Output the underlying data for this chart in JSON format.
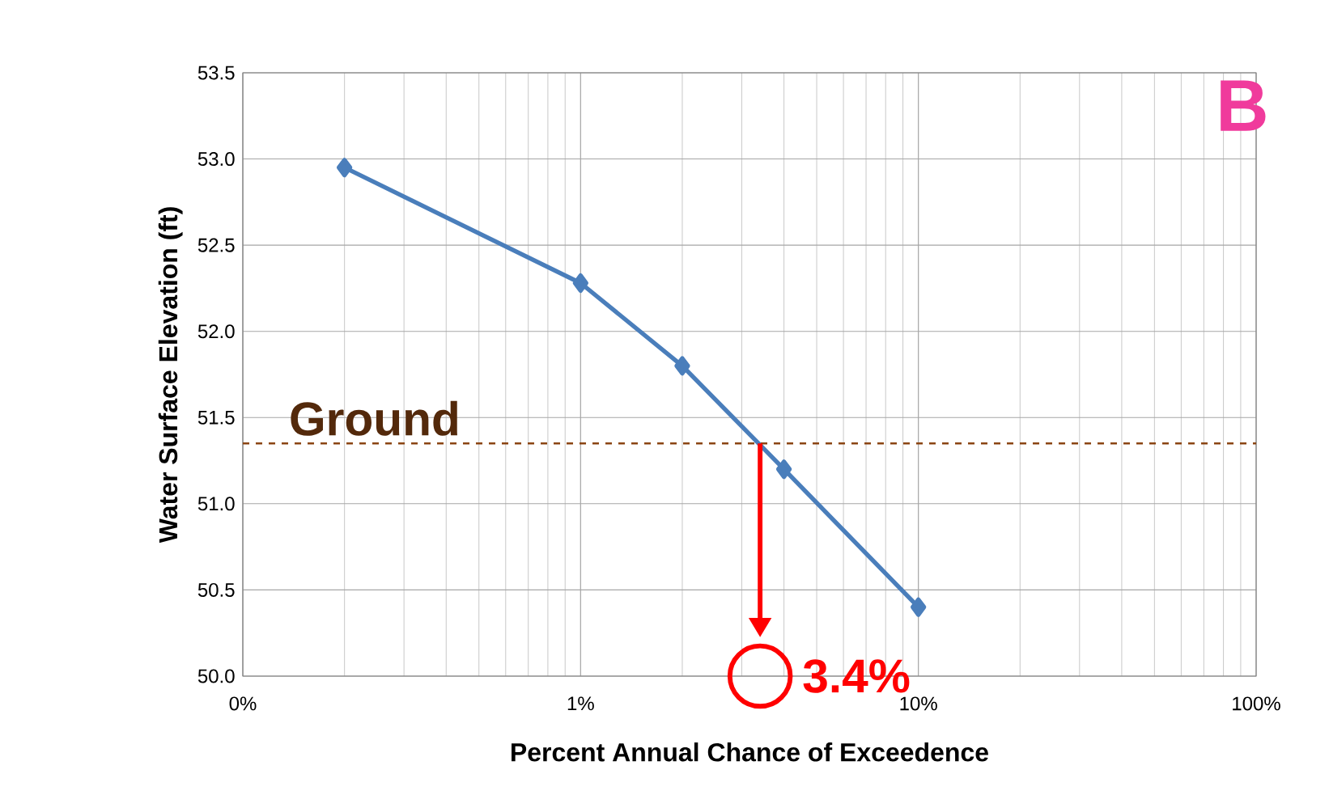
{
  "chart_data": {
    "type": "line",
    "xlabel": "Percent Annual Chance of Exceedence",
    "ylabel": "Water Surface Elevation (ft)",
    "x": [
      0.2,
      1,
      2,
      4,
      10
    ],
    "series": [
      {
        "color": "#4a7ebb",
        "values": [
          52.95,
          52.28,
          51.8,
          51.2,
          50.4
        ]
      }
    ],
    "log": "x",
    "xlim": [
      0.1,
      100
    ],
    "ylim": [
      50,
      53.5
    ],
    "xticks": [
      {
        "value": 0.1,
        "label": "0%"
      },
      {
        "value": 1,
        "label": "1%"
      },
      {
        "value": 10,
        "label": "10%"
      },
      {
        "value": 100,
        "label": "100%"
      }
    ],
    "yticks": [
      {
        "value": 50,
        "label": "50.0"
      },
      50.5,
      {
        "value": 51,
        "label": "51.0"
      },
      51.5,
      {
        "value": 52,
        "label": "52.0"
      },
      52.5,
      {
        "value": 53,
        "label": "53.0"
      },
      53.5
    ],
    "grid": true,
    "marker": "diamond",
    "line_style": "solid",
    "ref_lines": [
      {
        "axis": "y",
        "value": 51.35,
        "label": "Ground",
        "color": "#8b4513",
        "line_style": "dashed"
      }
    ],
    "annotations": [
      "B",
      {
        "text": "3.4%",
        "x": 3.4,
        "y": 50.0
      }
    ]
  }
}
